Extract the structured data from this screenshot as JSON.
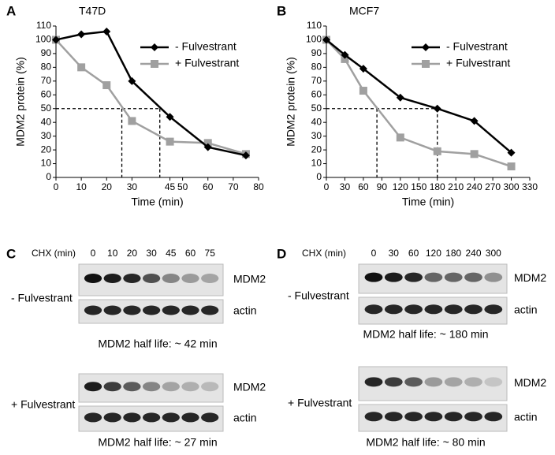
{
  "chart_data": [
    {
      "type": "line",
      "panel_label": "A",
      "title": "T47D",
      "xlabel": "Time (min)",
      "ylabel": "MDM2 protein (%)",
      "x": [
        0,
        10,
        20,
        30,
        45,
        60,
        75
      ],
      "series": [
        {
          "name": "-  Fulvestrant",
          "color": "#000000",
          "marker": "diamond",
          "values": [
            100,
            104,
            106,
            70,
            44,
            22,
            16
          ]
        },
        {
          "name": "+ Fulvestrant",
          "color": "#a0a0a0",
          "marker": "square",
          "values": [
            100,
            80,
            67,
            41,
            26,
            25,
            17
          ]
        }
      ],
      "xlim": [
        0,
        80
      ],
      "xticks": [
        0,
        10,
        20,
        30,
        45,
        50,
        60,
        70,
        80
      ],
      "ylim": [
        0,
        110
      ],
      "yticks": [
        0,
        10,
        20,
        30,
        40,
        50,
        60,
        70,
        80,
        90,
        100,
        110
      ],
      "half_life_lines": [
        {
          "x": 41,
          "y": 50
        },
        {
          "x": 26,
          "y": 50
        }
      ],
      "legend": "upper right"
    },
    {
      "type": "line",
      "panel_label": "B",
      "title": "MCF7",
      "xlabel": "Time (min)",
      "ylabel": "MDM2 protein (%)",
      "x": [
        0,
        30,
        60,
        120,
        180,
        240,
        300
      ],
      "series": [
        {
          "name": "-  Fulvestrant",
          "color": "#000000",
          "marker": "diamond",
          "values": [
            100,
            89,
            79,
            58,
            50,
            41,
            18
          ]
        },
        {
          "name": "+ Fulvestrant",
          "color": "#a0a0a0",
          "marker": "square",
          "values": [
            100,
            86,
            63,
            29,
            19,
            17,
            8
          ]
        }
      ],
      "xlim": [
        0,
        330
      ],
      "xticks": [
        0,
        30,
        60,
        90,
        120,
        150,
        180,
        210,
        240,
        270,
        300,
        330
      ],
      "ylim": [
        0,
        110
      ],
      "yticks": [
        0,
        10,
        20,
        30,
        40,
        50,
        60,
        70,
        80,
        90,
        100,
        110
      ],
      "half_life_lines": [
        {
          "x": 180,
          "y": 50
        },
        {
          "x": 82,
          "y": 50
        }
      ],
      "legend": "upper right"
    }
  ],
  "blots": [
    {
      "panel_label": "C",
      "chx_label": "CHX (min)",
      "lanes": [
        "0",
        "10",
        "20",
        "30",
        "45",
        "60",
        "75"
      ],
      "conditions": [
        {
          "name": "- Fulvestrant",
          "rows": [
            "MDM2",
            "actin"
          ],
          "half_life": "MDM2 half life: ~ 42 min"
        },
        {
          "name": "+ Fulvestrant",
          "rows": [
            "MDM2",
            "actin"
          ],
          "half_life": "MDM2 half life: ~ 27 min"
        }
      ]
    },
    {
      "panel_label": "D",
      "chx_label": "CHX (min)",
      "lanes": [
        "0",
        "30",
        "60",
        "120",
        "180",
        "240",
        "300"
      ],
      "conditions": [
        {
          "name": "- Fulvestrant",
          "rows": [
            "MDM2",
            "actin"
          ],
          "half_life": "MDM2 half life: ~ 180 min"
        },
        {
          "name": "+ Fulvestrant",
          "rows": [
            "MDM2",
            "actin"
          ],
          "half_life": "MDM2 half life: ~ 80 min"
        }
      ]
    }
  ]
}
